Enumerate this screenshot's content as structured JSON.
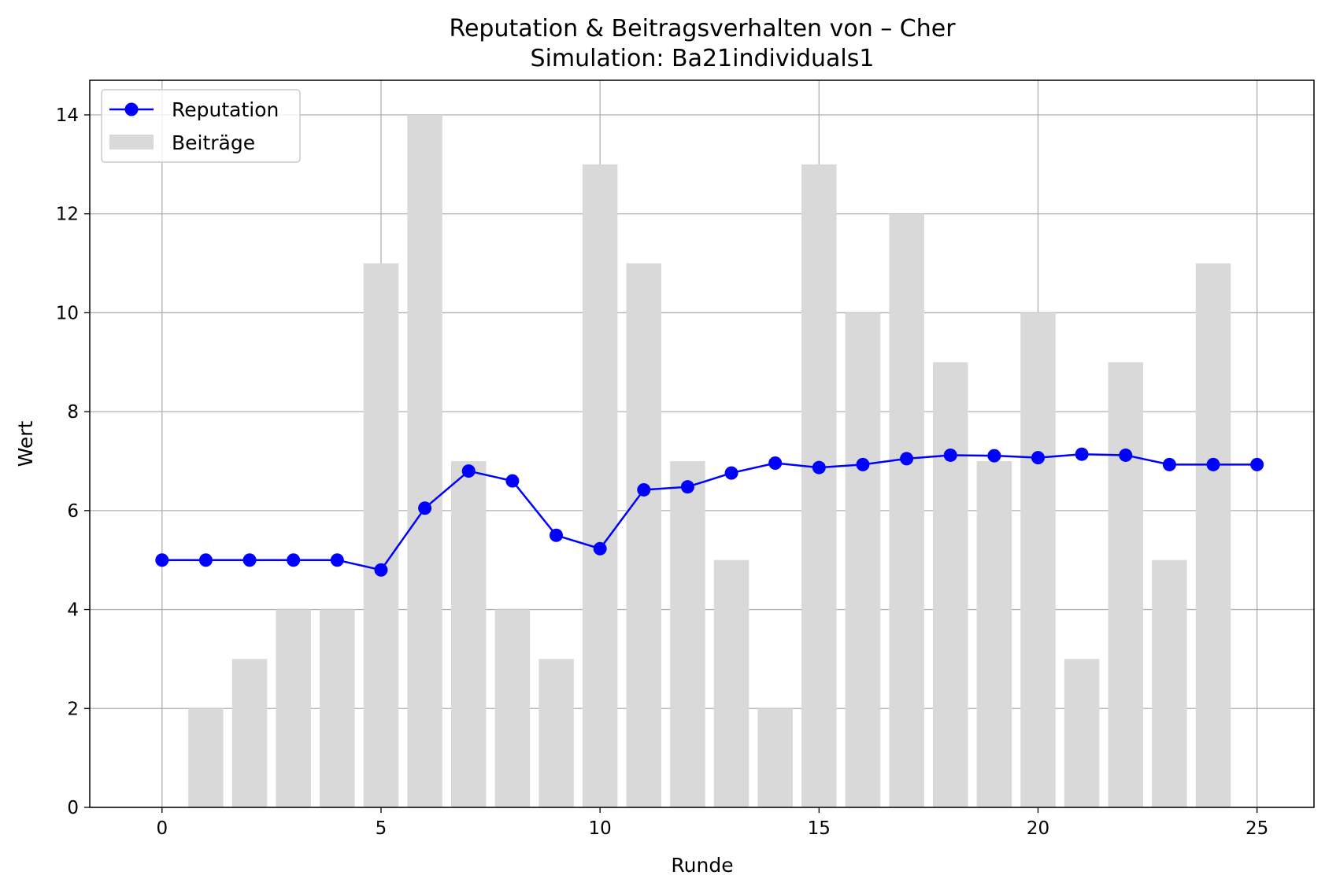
{
  "chart_data": {
    "type": "bar+line",
    "title": "Reputation & Beitragsverhalten von – Cher",
    "subtitle": "Simulation: Ba21individuals1",
    "xlabel": "Runde",
    "ylabel": "Wert",
    "xlim": [
      -1.65,
      26.3
    ],
    "ylim": [
      0,
      14.7
    ],
    "xticks": [
      0,
      5,
      10,
      15,
      20,
      25
    ],
    "yticks": [
      0,
      2,
      4,
      6,
      8,
      10,
      12,
      14
    ],
    "grid": true,
    "legend_position": "top-left",
    "series": [
      {
        "name": "Beiträge",
        "type": "bar",
        "color": "#d9d9d9",
        "x": [
          1,
          2,
          3,
          4,
          5,
          6,
          7,
          8,
          9,
          10,
          11,
          12,
          13,
          14,
          15,
          16,
          17,
          18,
          19,
          20,
          21,
          22,
          23,
          24
        ],
        "values": [
          2,
          3,
          4,
          4,
          11,
          14,
          7,
          4,
          3,
          13,
          11,
          7,
          5,
          2,
          13,
          10,
          12,
          9,
          7,
          10,
          3,
          9,
          5,
          11
        ]
      },
      {
        "name": "Reputation",
        "type": "line",
        "color": "#0000ff",
        "marker": "circle",
        "x": [
          0,
          1,
          2,
          3,
          4,
          5,
          6,
          7,
          8,
          9,
          10,
          11,
          12,
          13,
          14,
          15,
          16,
          17,
          18,
          19,
          20,
          21,
          22,
          23,
          24,
          25
        ],
        "values": [
          5.0,
          5.0,
          5.0,
          5.0,
          5.0,
          4.8,
          6.05,
          6.8,
          6.6,
          5.5,
          5.23,
          6.42,
          6.48,
          6.76,
          6.96,
          6.87,
          6.93,
          7.05,
          7.12,
          7.11,
          7.07,
          7.14,
          7.12,
          6.93,
          6.93,
          6.93
        ]
      }
    ]
  }
}
